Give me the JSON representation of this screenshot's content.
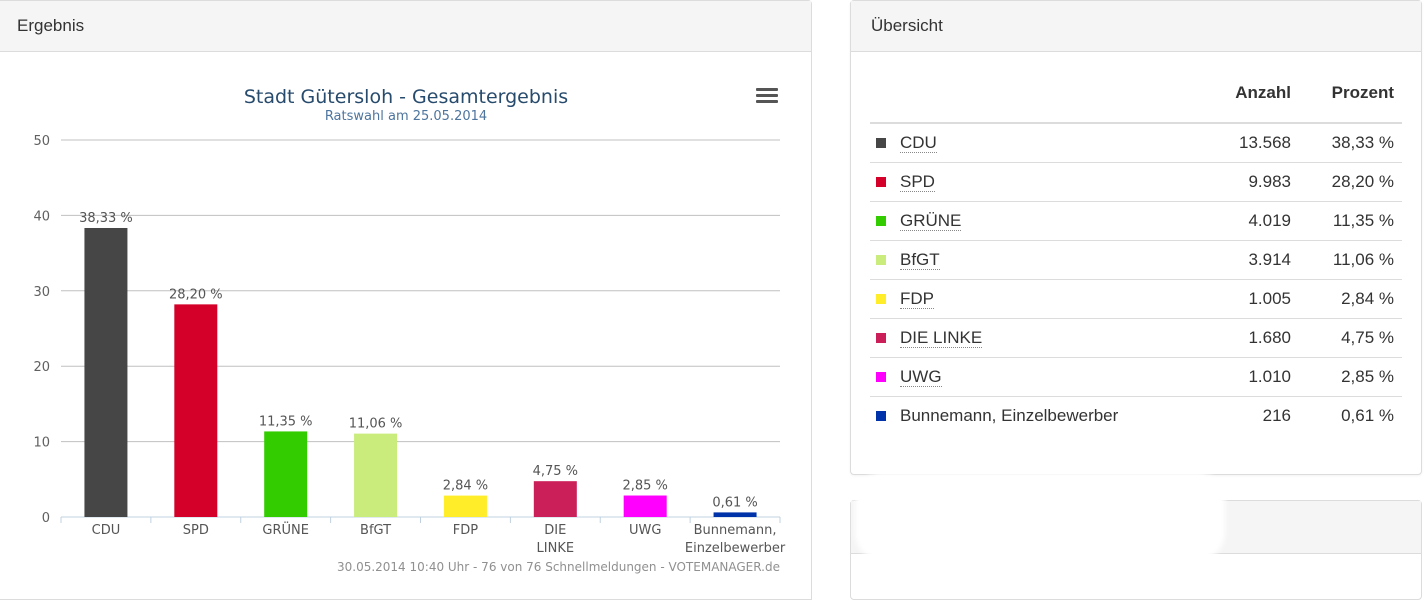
{
  "left_panel": {
    "title": "Ergebnis"
  },
  "right_panel": {
    "title": "Übersicht"
  },
  "chart_data": {
    "type": "bar",
    "title": "Stadt Gütersloh - Gesamtergebnis",
    "subtitle": "Ratswahl am 25.05.2014",
    "categories": [
      "CDU",
      "SPD",
      "GRÜNE",
      "BfGT",
      "FDP",
      "DIE LINKE",
      "UWG",
      "Bunnemann, Einzelbewerber"
    ],
    "category_lines": [
      [
        "CDU"
      ],
      [
        "SPD"
      ],
      [
        "GRÜNE"
      ],
      [
        "BfGT"
      ],
      [
        "FDP"
      ],
      [
        "DIE",
        "LINKE"
      ],
      [
        "UWG"
      ],
      [
        "Bunnemann,",
        "Einzelbewerber"
      ]
    ],
    "values": [
      38.33,
      28.2,
      11.35,
      11.06,
      2.84,
      4.75,
      2.85,
      0.61
    ],
    "data_labels": [
      "38,33 %",
      "28,20 %",
      "11,35 %",
      "11,06 %",
      "2,84 %",
      "4,75 %",
      "2,85 %",
      "0,61 %"
    ],
    "colors": [
      "#464646",
      "#d5002a",
      "#33cc00",
      "#c9ec7c",
      "#ffed2a",
      "#cb1f5a",
      "#ff00ff",
      "#0033aa"
    ],
    "yticks": [
      0,
      10,
      20,
      30,
      40,
      50
    ],
    "ylim": [
      0,
      50
    ],
    "grid": true,
    "credits": "30.05.2014 10:40 Uhr - 76 von 76 Schnellmeldungen - VOTEMANAGER.de"
  },
  "overview": {
    "headers": {
      "party": "",
      "count": "Anzahl",
      "percent": "Prozent"
    },
    "rows": [
      {
        "party": "CDU",
        "count": "13.568",
        "percent": "38,33 %",
        "color": "#464646"
      },
      {
        "party": "SPD",
        "count": "9.983",
        "percent": "28,20 %",
        "color": "#d5002a"
      },
      {
        "party": "GRÜNE",
        "count": "4.019",
        "percent": "11,35 %",
        "color": "#33cc00"
      },
      {
        "party": "BfGT",
        "count": "3.914",
        "percent": "11,06 %",
        "color": "#c9ec7c"
      },
      {
        "party": "FDP",
        "count": "1.005",
        "percent": "2,84 %",
        "color": "#ffed2a"
      },
      {
        "party": "DIE LINKE",
        "count": "1.680",
        "percent": "4,75 %",
        "color": "#cb1f5a"
      },
      {
        "party": "UWG",
        "count": "1.010",
        "percent": "2,85 %",
        "color": "#ff00ff"
      },
      {
        "party": "Bunnemann, Einzelbewerber",
        "count": "216",
        "percent": "0,61 %",
        "color": "#0033aa"
      }
    ]
  }
}
